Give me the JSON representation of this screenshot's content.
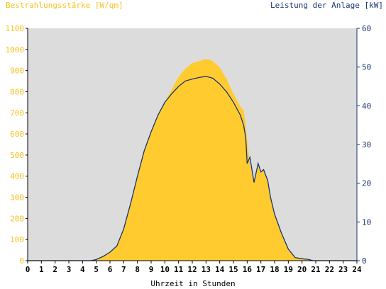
{
  "chart_data": {
    "type": "area",
    "ylabel_left": "Bestrahlungsstärke [W/qm]",
    "ylabel_right": "Leistung der Anlage [kW]",
    "xlabel": "Uhrzeit in Stunden",
    "xlim": [
      0,
      24
    ],
    "ylim_left": [
      0,
      1100
    ],
    "ylim_right": [
      0,
      60
    ],
    "x_ticks": [
      "0",
      "1",
      "2",
      "3",
      "4",
      "5",
      "6",
      "7",
      "8",
      "9",
      "10",
      "11",
      "12",
      "13",
      "14",
      "15",
      "16",
      "17",
      "18",
      "19",
      "20",
      "21",
      "22",
      "23",
      "24"
    ],
    "y_ticks_left": [
      "0",
      "100",
      "200",
      "300",
      "400",
      "500",
      "600",
      "700",
      "800",
      "900",
      "1000",
      "1100"
    ],
    "y_ticks_right": [
      "0",
      "10",
      "20",
      "30",
      "40",
      "50",
      "60"
    ],
    "grid": false,
    "colors": {
      "plot_bg": "#dcdcdc",
      "irradiance": "#ffcb2f",
      "power": "#1a3472",
      "left_axis_text": "#f6c21f",
      "right_axis_text": "#1a3472"
    },
    "series": [
      {
        "name": "Bestrahlungsstärke [W/qm]",
        "axis": "left",
        "style": "area",
        "x": [
          0,
          4.6,
          5.0,
          5.5,
          6.0,
          6.5,
          7.0,
          7.5,
          8.0,
          8.5,
          9.0,
          9.5,
          10.0,
          10.5,
          11.0,
          11.5,
          12.0,
          12.5,
          13.0,
          13.3,
          13.5,
          14.0,
          14.5,
          15.0,
          15.5,
          15.75,
          15.9,
          16.0,
          16.2,
          16.5,
          16.8,
          17.0,
          17.2,
          17.5,
          17.7,
          18.0,
          18.5,
          19.0,
          19.5,
          20.0,
          20.5,
          20.8,
          24
        ],
        "y": [
          0,
          0,
          5,
          20,
          40,
          70,
          150,
          270,
          400,
          520,
          610,
          690,
          750,
          810,
          870,
          910,
          935,
          945,
          955,
          950,
          945,
          915,
          860,
          790,
          730,
          710,
          640,
          570,
          460,
          370,
          460,
          420,
          430,
          380,
          300,
          220,
          130,
          55,
          15,
          10,
          5,
          0,
          0
        ]
      },
      {
        "name": "Leistung der Anlage [kW]",
        "axis": "right",
        "style": "line",
        "x": [
          0,
          4.6,
          5.0,
          5.5,
          6.0,
          6.5,
          7.0,
          7.5,
          8.0,
          8.5,
          9.0,
          9.5,
          10.0,
          10.5,
          11.0,
          11.5,
          12.0,
          12.5,
          13.0,
          13.3,
          13.5,
          14.0,
          14.5,
          15.0,
          15.5,
          15.75,
          15.9,
          16.0,
          16.2,
          16.5,
          16.8,
          17.0,
          17.2,
          17.5,
          17.7,
          18.0,
          18.5,
          19.0,
          19.5,
          20.0,
          20.5,
          20.8,
          24
        ],
        "y": [
          0,
          0,
          0.3,
          1.1,
          2.2,
          3.8,
          8.2,
          14.7,
          21.8,
          28.4,
          33.3,
          37.6,
          40.9,
          43.1,
          45.0,
          46.4,
          46.9,
          47.3,
          47.6,
          47.3,
          47.1,
          45.6,
          43.6,
          40.9,
          37.6,
          34.9,
          31.6,
          25.1,
          26.7,
          20.2,
          25.1,
          22.9,
          23.5,
          20.7,
          16.4,
          12.0,
          7.1,
          3.0,
          0.8,
          0.5,
          0.3,
          0,
          0
        ]
      }
    ]
  }
}
